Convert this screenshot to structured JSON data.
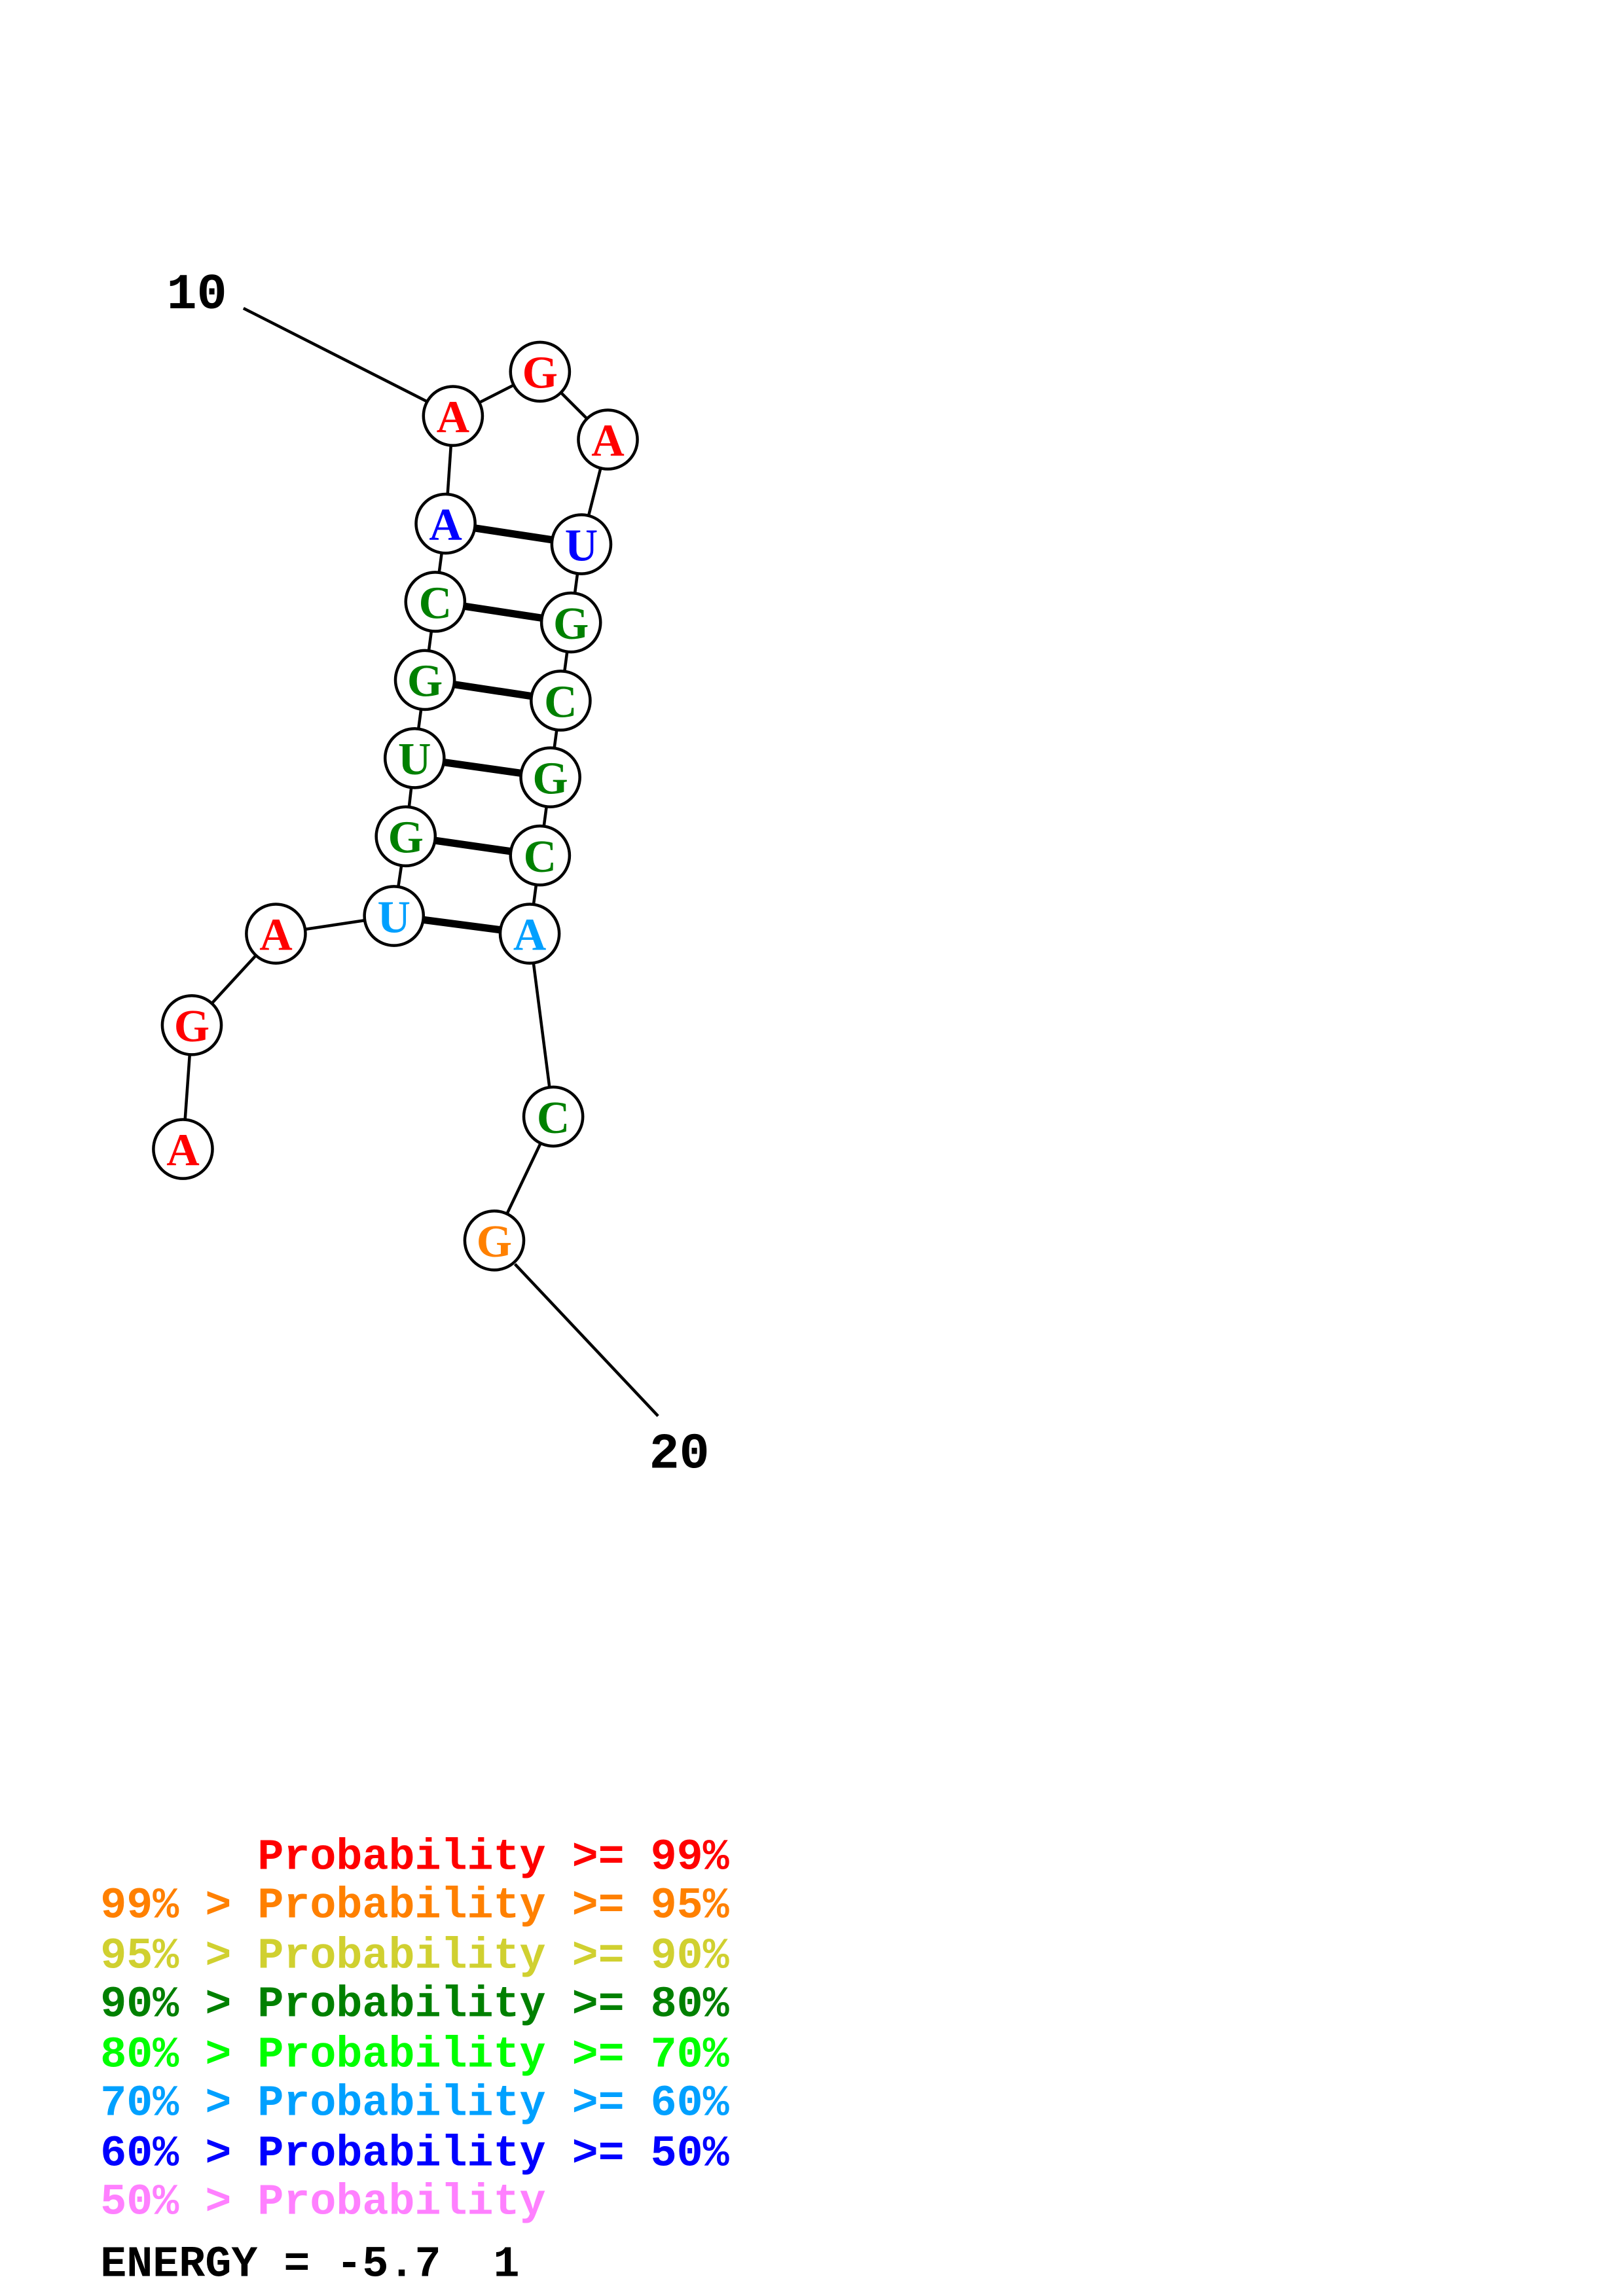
{
  "structure": {
    "sequence": [
      "A",
      "G",
      "A",
      "U",
      "G",
      "U",
      "G",
      "C",
      "A",
      "A",
      "G",
      "A",
      "U",
      "G",
      "C",
      "G",
      "C",
      "A",
      "C",
      "G"
    ],
    "nucleotide_colors": [
      "#ff0000",
      "#ff0000",
      "#ff0000",
      "#00a0ff",
      "#008000",
      "#008000",
      "#008000",
      "#008000",
      "#0000ff",
      "#ff0000",
      "#ff0000",
      "#ff0000",
      "#0000ff",
      "#008000",
      "#008000",
      "#008000",
      "#008000",
      "#00a0ff",
      "#008000",
      "#ff8000"
    ],
    "base_pairs": [
      [
        4,
        18
      ],
      [
        5,
        17
      ],
      [
        6,
        16
      ],
      [
        7,
        15
      ],
      [
        8,
        14
      ],
      [
        9,
        13
      ]
    ],
    "position_labels": [
      {
        "text": "10",
        "index": 10
      },
      {
        "text": "20",
        "index": 20
      }
    ]
  },
  "legend": [
    {
      "text": "      Probability >= 99%",
      "color": "#ff0000"
    },
    {
      "text": "99% > Probability >= 95%",
      "color": "#ff8000"
    },
    {
      "text": "95% > Probability >= 90%",
      "color": "#d0d030"
    },
    {
      "text": "90% > Probability >= 80%",
      "color": "#008000"
    },
    {
      "text": "80% > Probability >= 70%",
      "color": "#00ff00"
    },
    {
      "text": "70% > Probability >= 60%",
      "color": "#00a0ff"
    },
    {
      "text": "60% > Probability >= 50%",
      "color": "#0000ff"
    },
    {
      "text": "50% > Probability",
      "color": "#ff80ff"
    }
  ],
  "energy": {
    "text": "ENERGY = -5.7  1"
  }
}
